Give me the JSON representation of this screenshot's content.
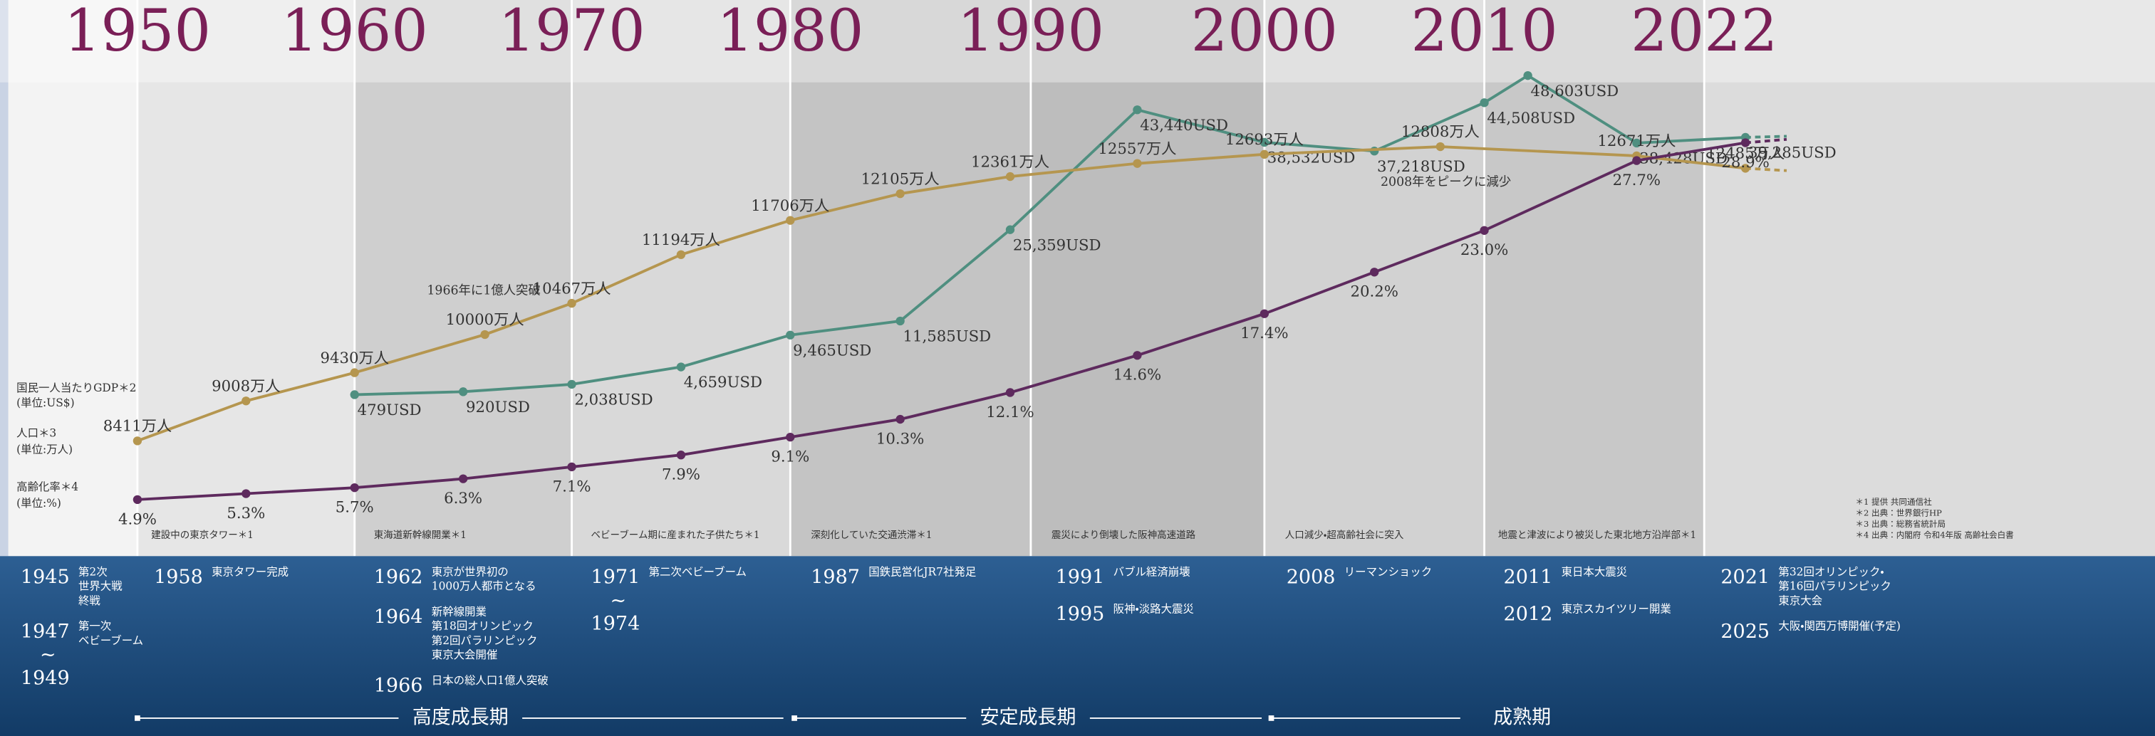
{
  "chart_data": {
    "type": "line",
    "xticks": [
      1950,
      1960,
      1970,
      1980,
      1990,
      2000,
      2010,
      2022
    ],
    "xlim": [
      1950,
      2022
    ],
    "series": [
      {
        "name": "国民一人当たりGDP＊2",
        "unit": "(単位:US$)",
        "color": "#4f8f80",
        "ylim": [
          -51000,
          60000
        ],
        "x": [
          1960,
          1965,
          1970,
          1975,
          1980,
          1985,
          1990,
          1995,
          2000,
          2005,
          2010,
          2012,
          2017,
          2022
        ],
        "values": [
          479,
          920,
          2038,
          4659,
          9465,
          11585,
          25359,
          43440,
          38532,
          37218,
          44508,
          48603,
          38428,
          39285
        ],
        "value_labels": [
          "479USD",
          "920USD",
          "2,038USD",
          "4,659USD",
          "9,465USD",
          "11,585USD",
          "25,359USD",
          "43,440USD",
          "38,532USD",
          "37,218USD",
          "44,508USD",
          "48,603USD",
          "38,428USD",
          "39,285USD"
        ]
      },
      {
        "name": "人口＊3",
        "unit": "(単位:万人)",
        "color": "#b5964f",
        "ylim": [
          4000,
          15000
        ],
        "x": [
          1950,
          1955,
          1960,
          1966,
          1970,
          1975,
          1980,
          1985,
          1990,
          1995,
          2000,
          2008,
          2017,
          2022
        ],
        "values": [
          8411,
          9008,
          9430,
          10000,
          10467,
          11194,
          11706,
          12105,
          12361,
          12557,
          12693,
          12808,
          12671,
          12485
        ],
        "value_labels": [
          "8411万人",
          "9008万人",
          "9430万人",
          "10000万人",
          "10467万人",
          "11194万人",
          "11706万人",
          "12105万人",
          "12361万人",
          "12557万人",
          "12693万人",
          "12808万人",
          "12671万人",
          "12485万人"
        ]
      },
      {
        "name": "高齢化率＊4",
        "unit": "(単位:%)",
        "color": "#5e2a5e",
        "ylim": [
          -11,
          38.5
        ],
        "x": [
          1950,
          1955,
          1960,
          1965,
          1970,
          1975,
          1980,
          1985,
          1990,
          1995,
          2000,
          2005,
          2010,
          2017,
          2022
        ],
        "values": [
          4.9,
          5.3,
          5.7,
          6.3,
          7.1,
          7.9,
          9.1,
          10.3,
          12.1,
          14.6,
          17.4,
          20.2,
          23.0,
          27.7,
          28.9
        ],
        "value_labels": [
          "4.9%",
          "5.3%",
          "5.7%",
          "6.3%",
          "7.1%",
          "7.9%",
          "9.1%",
          "10.3%",
          "12.1%",
          "14.6%",
          "17.4%",
          "20.2%",
          "23.0%",
          "27.7%",
          "28.9%"
        ]
      }
    ],
    "annotations": [
      "1966年に1億人突破",
      "2008年をピークに減少"
    ]
  },
  "photo_captions": [
    "建設中の東京タワー＊1",
    "東海道新幹線開業＊1",
    "ベビーブーム期に産まれた子供たち＊1",
    "深刻化していた交通渋滞＊1",
    "震災により倒壊した阪神高速道路",
    "人口減少・超高齢社会に突入",
    "地震と津波により被災した東北地方沿岸部＊1"
  ],
  "notes": [
    "＊1 提供 共同通信社",
    "＊2 出典：世界銀行HP",
    "＊3 出典：総務省統計局",
    "＊4 出典：内閣府 令和4年版 高齢社会白書"
  ],
  "event_columns": [
    [
      {
        "year": [
          "1945"
        ],
        "text": [
          "第2次",
          "世界大戦",
          "終戦"
        ]
      },
      {
        "year": [
          "1947",
          "~",
          "1949"
        ],
        "text": [
          "第一次",
          "ベビーブーム"
        ]
      }
    ],
    [
      {
        "year": [
          "1958"
        ],
        "text": [
          "東京タワー完成"
        ]
      }
    ],
    [
      {
        "year": [
          "1962"
        ],
        "text": [
          "東京が世界初の",
          "1000万人都市となる"
        ]
      },
      {
        "year": [
          "1964"
        ],
        "text": [
          "新幹線開業",
          "第18回オリンピック",
          "第2回パラリンピック",
          "東京大会開催"
        ]
      },
      {
        "year": [
          "1966"
        ],
        "text": [
          "日本の総人口1億人突破"
        ]
      }
    ],
    [
      {
        "year": [
          "1971",
          "~",
          "1974"
        ],
        "text": [
          "第二次ベビーブーム"
        ]
      }
    ],
    [
      {
        "year": [
          "1987"
        ],
        "text": [
          "国鉄民営化JR7社発足"
        ]
      }
    ],
    [
      {
        "year": [
          "1991"
        ],
        "text": [
          "バブル経済崩壊"
        ]
      },
      {
        "year": [
          "1995"
        ],
        "text": [
          "阪神・淡路大震災"
        ]
      }
    ],
    [
      {
        "year": [
          "2008"
        ],
        "text": [
          "リーマンショック"
        ]
      }
    ],
    [
      {
        "year": [
          "2011"
        ],
        "text": [
          "東日本大震災"
        ]
      },
      {
        "year": [
          "2012"
        ],
        "text": [
          "東京スカイツリー開業"
        ]
      }
    ],
    [
      {
        "year": [
          "2021"
        ],
        "text": [
          "第32回オリンピック・",
          "第16回パラリンピック",
          "東京大会"
        ]
      },
      {
        "year": [
          "2025"
        ],
        "text": [
          "大阪・関西万博開催(予定)"
        ]
      }
    ]
  ],
  "eras": [
    "高度成長期",
    "安定成長期",
    "成熟期"
  ]
}
